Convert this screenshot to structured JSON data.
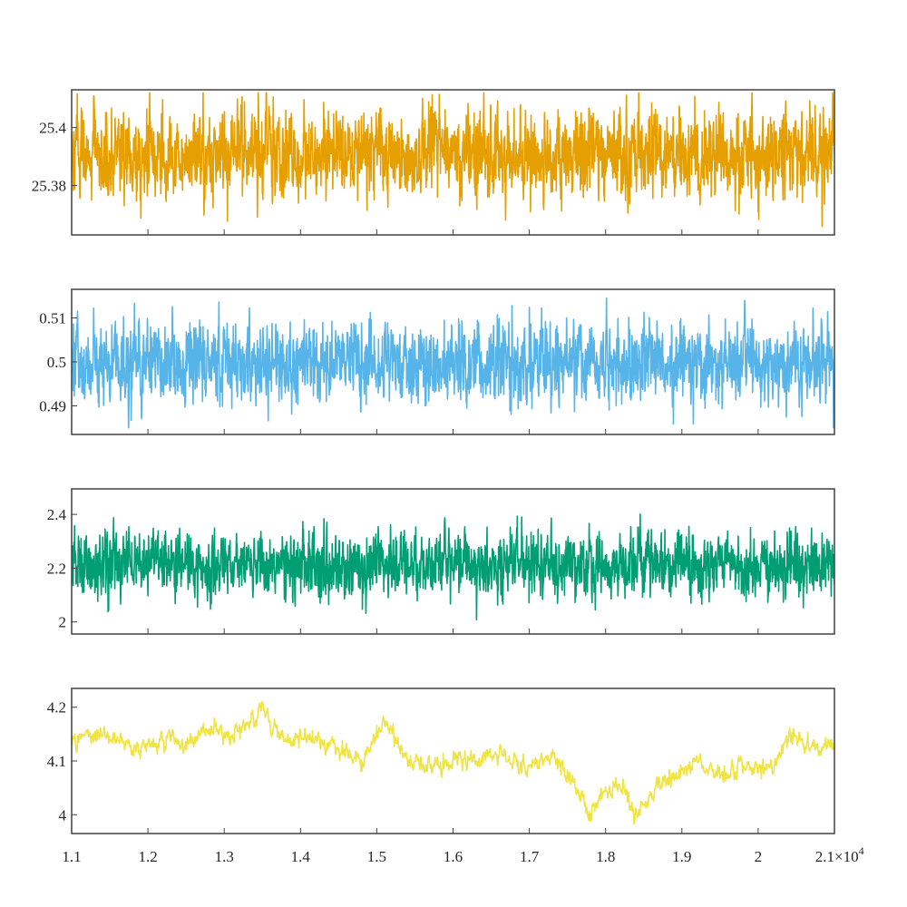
{
  "chart_data": [
    {
      "type": "line",
      "series": [
        {
          "color": "#E69F00"
        }
      ],
      "xlim": [
        11000,
        21000
      ],
      "ylim": [
        25.363,
        25.413
      ],
      "yticks": [
        25.38,
        25.4
      ],
      "ytick_labels": [
        "25.38",
        "25.4"
      ],
      "signal": {
        "mean": 25.391,
        "noise_amplitude": 0.007,
        "min": 25.364,
        "max": 25.412
      },
      "grid": false
    },
    {
      "type": "line",
      "series": [
        {
          "color": "#56B4E9"
        }
      ],
      "xlim": [
        11000,
        21000
      ],
      "ylim": [
        0.4835,
        0.5165
      ],
      "yticks": [
        0.49,
        0.5,
        0.51
      ],
      "ytick_labels": [
        "0.49",
        "0.5",
        "0.51"
      ],
      "signal": {
        "mean": 0.5,
        "noise_amplitude": 0.0042,
        "min": 0.485,
        "max": 0.5145
      },
      "grid": false
    },
    {
      "type": "line",
      "series": [
        {
          "color": "#009E73"
        }
      ],
      "xlim": [
        11000,
        21000
      ],
      "ylim": [
        1.955,
        2.495
      ],
      "yticks": [
        2,
        2.2,
        2.4
      ],
      "ytick_labels": [
        "2",
        "2.2",
        "2.4"
      ],
      "signal": {
        "mean": 2.21,
        "noise_amplitude": 0.055,
        "min": 1.98,
        "max": 2.46
      },
      "grid": false
    },
    {
      "type": "line",
      "series": [
        {
          "color": "#F0E442"
        }
      ],
      "xlim": [
        11000,
        21000
      ],
      "ylim": [
        3.965,
        4.235
      ],
      "yticks": [
        4,
        4.1,
        4.2
      ],
      "ytick_labels": [
        "4",
        "4.1",
        "4.2"
      ],
      "trend": {
        "x": [
          11000,
          11400,
          11800,
          12200,
          12500,
          12800,
          13100,
          13500,
          13700,
          14000,
          14400,
          14800,
          15100,
          15400,
          15800,
          16200,
          16600,
          17000,
          17300,
          17600,
          17800,
          18000,
          18200,
          18400,
          18600,
          18900,
          19200,
          19500,
          19800,
          20100,
          20400,
          20700,
          21000
        ],
        "y": [
          4.14,
          4.15,
          4.12,
          4.14,
          4.13,
          4.16,
          4.14,
          4.2,
          4.15,
          4.14,
          4.13,
          4.1,
          4.17,
          4.1,
          4.09,
          4.1,
          4.11,
          4.09,
          4.11,
          4.06,
          4.0,
          4.04,
          4.06,
          3.99,
          4.04,
          4.07,
          4.1,
          4.07,
          4.09,
          4.08,
          4.14,
          4.13,
          4.13
        ]
      },
      "signal": {
        "noise_amplitude": 0.008
      },
      "grid": false
    }
  ],
  "x_axis": {
    "tick_values": [
      11000,
      12000,
      13000,
      14000,
      15000,
      16000,
      17000,
      18000,
      19000,
      20000,
      21000
    ],
    "tick_labels": [
      "1.1",
      "1.2",
      "1.3",
      "1.4",
      "1.5",
      "1.6",
      "1.7",
      "1.8",
      "1.9",
      "2",
      "2.1"
    ],
    "exponent_base": "×10",
    "exponent_power": "4"
  }
}
